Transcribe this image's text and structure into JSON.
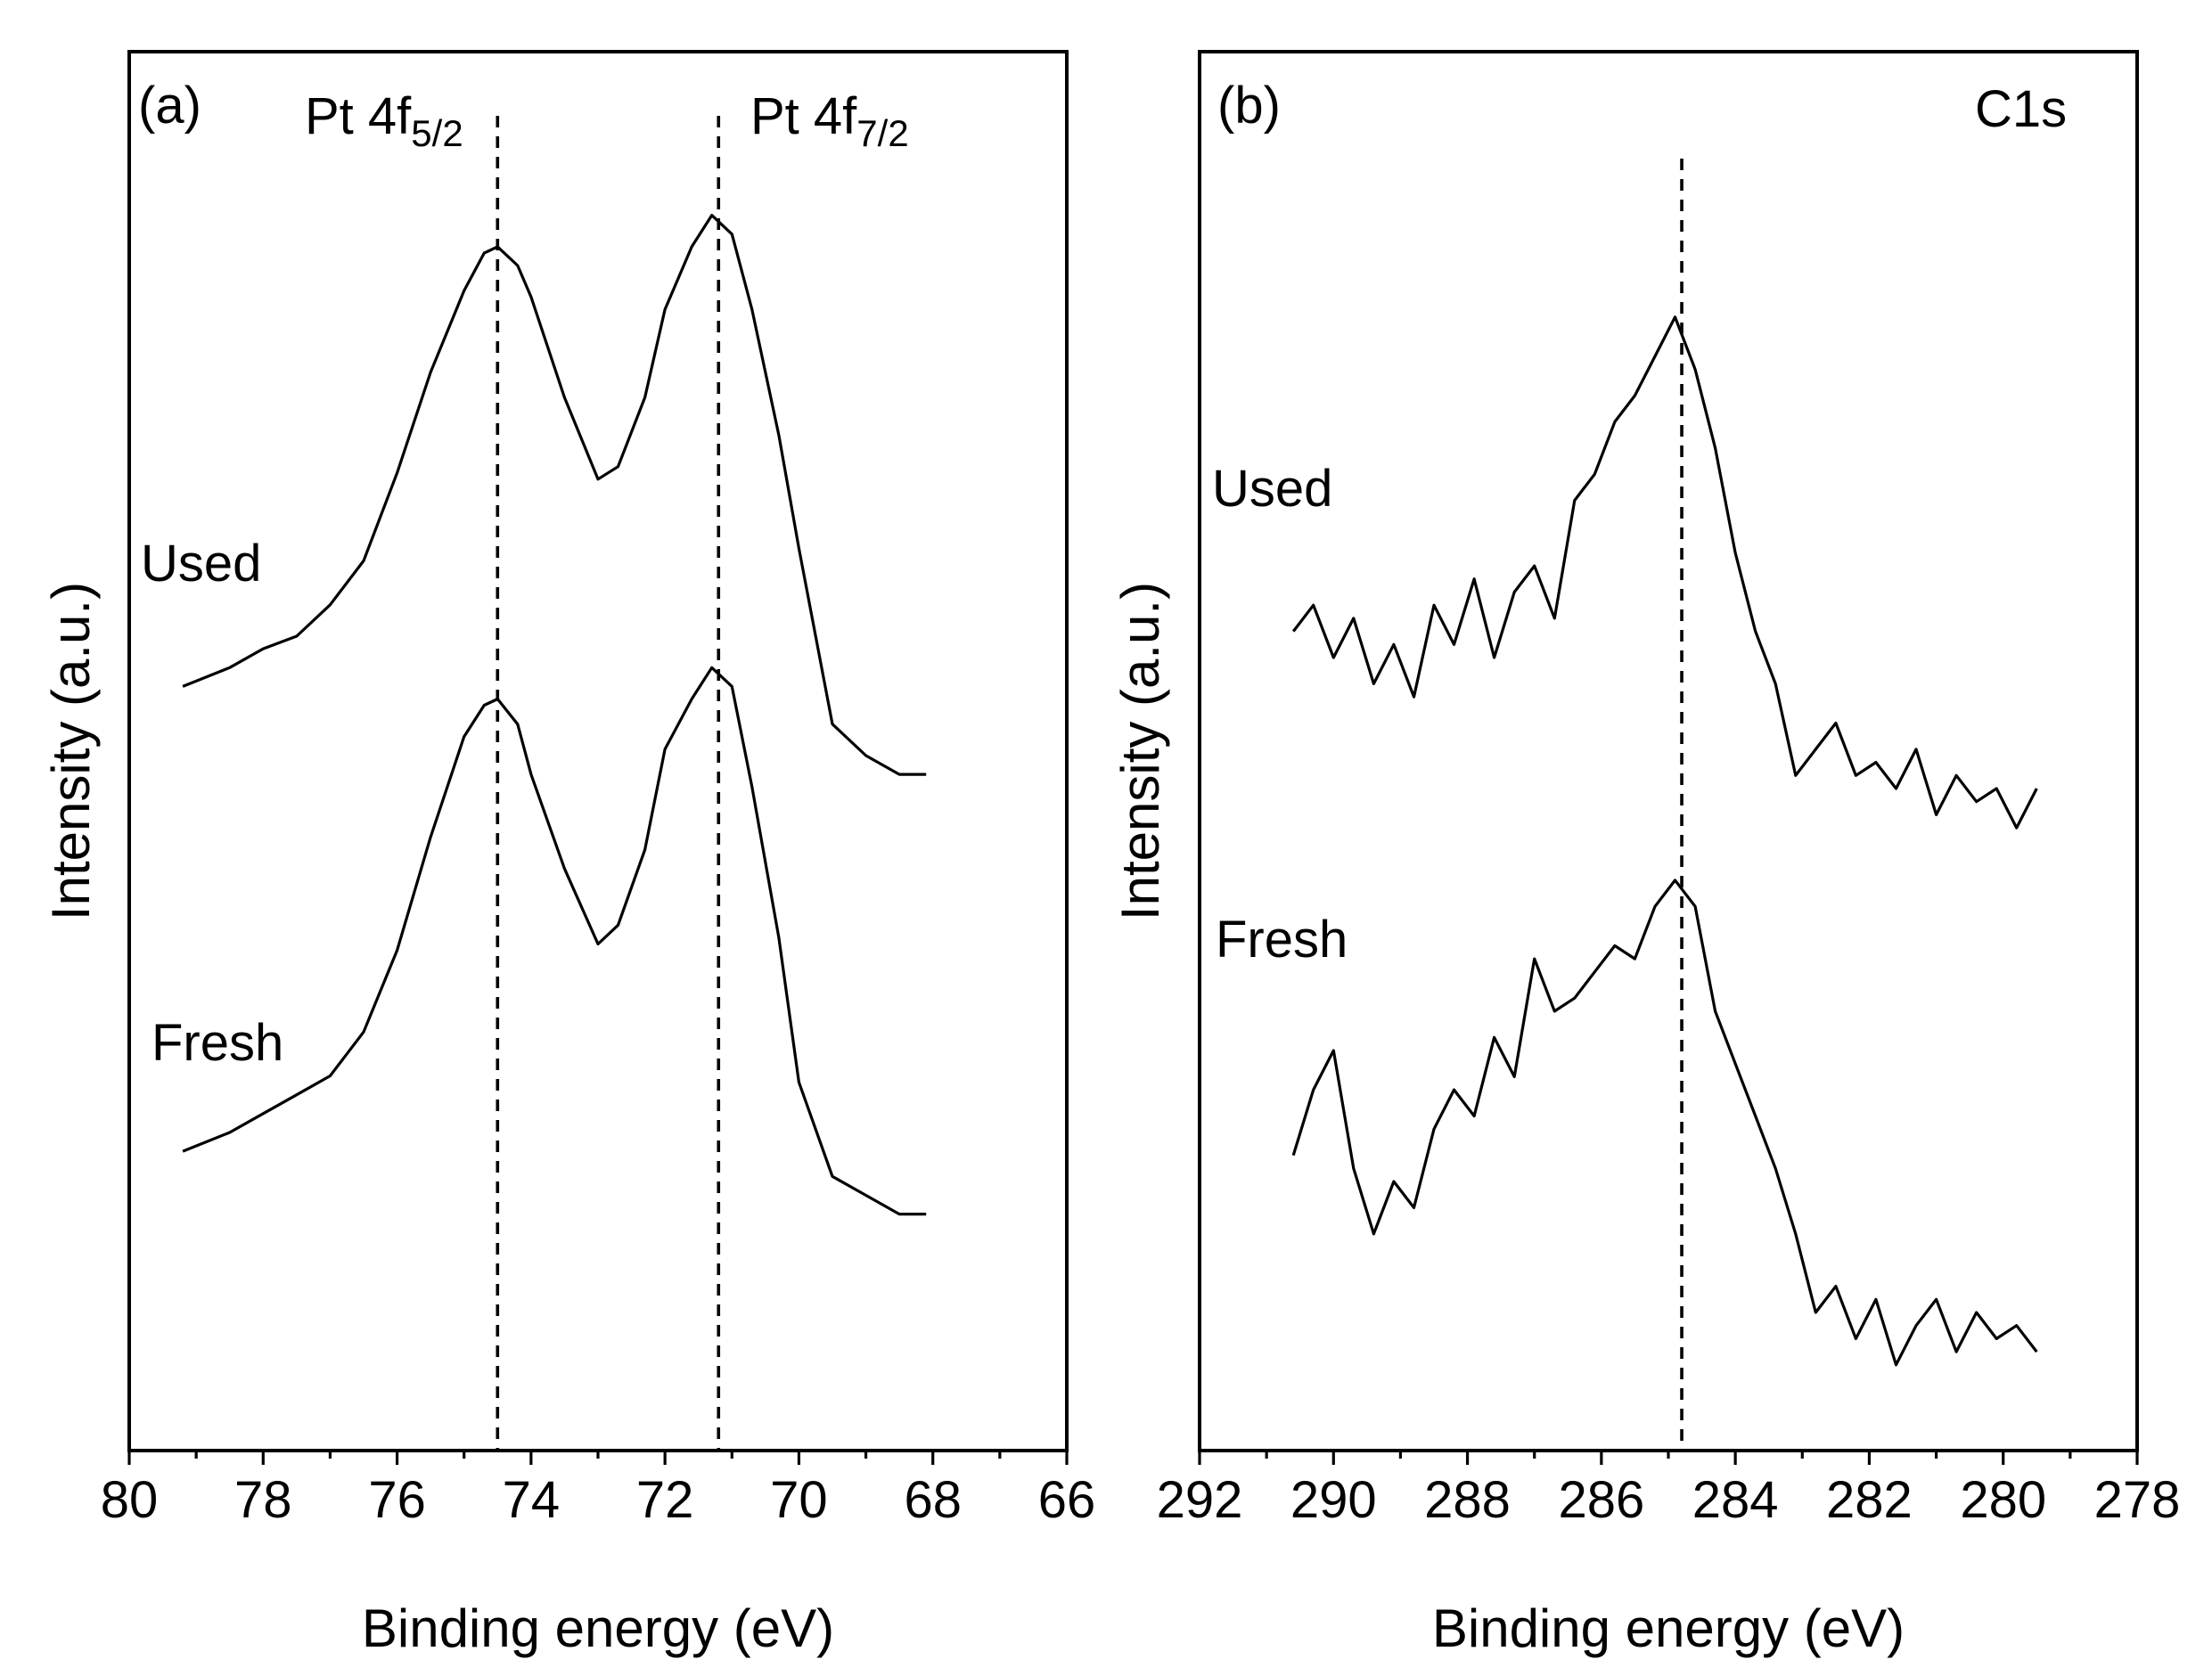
{
  "chart_data": [
    {
      "type": "line",
      "panel_label": "(a)",
      "xlabel": "Binding energy (eV)",
      "ylabel": "Intensity (a.u.)",
      "xlim": [
        80,
        66
      ],
      "x_direction": "reversed",
      "ylim": [
        0,
        1
      ],
      "y_ticks_shown": false,
      "x_ticks": [
        "80",
        "78",
        "76",
        "74",
        "72",
        "70",
        "68",
        "66"
      ],
      "reference_lines": [
        {
          "x": 74.5,
          "label_main": "Pt 4f",
          "label_sub": "5/2"
        },
        {
          "x": 71.2,
          "label_main": "Pt 4f",
          "label_sub": "7/2"
        }
      ],
      "series": [
        {
          "name": "Used",
          "x": [
            79.2,
            78.5,
            78.0,
            77.5,
            77.0,
            76.5,
            76.0,
            75.5,
            75.0,
            74.7,
            74.5,
            74.2,
            74.0,
            73.5,
            73.0,
            72.7,
            72.3,
            72.0,
            71.6,
            71.3,
            71.0,
            70.7,
            70.3,
            70.0,
            69.5,
            69.0,
            68.5,
            68.1
          ],
          "values": [
            0.56,
            0.575,
            0.59,
            0.6,
            0.625,
            0.66,
            0.73,
            0.81,
            0.875,
            0.905,
            0.91,
            0.895,
            0.87,
            0.79,
            0.725,
            0.735,
            0.79,
            0.86,
            0.91,
            0.935,
            0.92,
            0.86,
            0.76,
            0.67,
            0.53,
            0.505,
            0.49,
            0.49
          ]
        },
        {
          "name": "Fresh",
          "x": [
            79.2,
            78.5,
            78.0,
            77.5,
            77.0,
            76.5,
            76.0,
            75.5,
            75.0,
            74.7,
            74.5,
            74.2,
            74.0,
            73.5,
            73.0,
            72.7,
            72.3,
            72.0,
            71.6,
            71.3,
            71.0,
            70.7,
            70.3,
            70.0,
            69.5,
            69.0,
            68.5,
            68.1
          ],
          "values": [
            0.19,
            0.205,
            0.22,
            0.235,
            0.25,
            0.285,
            0.35,
            0.44,
            0.52,
            0.545,
            0.55,
            0.53,
            0.49,
            0.415,
            0.355,
            0.37,
            0.43,
            0.51,
            0.55,
            0.575,
            0.56,
            0.48,
            0.36,
            0.245,
            0.17,
            0.155,
            0.14,
            0.14
          ]
        }
      ],
      "curve_labels": [
        "Used",
        "Fresh"
      ]
    },
    {
      "type": "line",
      "panel_label": "(b)",
      "title_annotation": "C1s",
      "xlabel": "Binding energy (eV)",
      "ylabel": "Intensity (a.u.)",
      "xlim": [
        292,
        278
      ],
      "x_direction": "reversed",
      "ylim": [
        0,
        1
      ],
      "y_ticks_shown": false,
      "x_ticks": [
        "292",
        "290",
        "288",
        "286",
        "284",
        "282",
        "280",
        "278"
      ],
      "reference_lines": [
        {
          "x": 284.8
        }
      ],
      "series": [
        {
          "name": "Used",
          "x": [
            290.6,
            290.3,
            290.0,
            289.7,
            289.4,
            289.1,
            288.8,
            288.5,
            288.2,
            287.9,
            287.6,
            287.3,
            287.0,
            286.7,
            286.4,
            286.1,
            285.8,
            285.5,
            285.2,
            284.9,
            284.6,
            284.3,
            284.0,
            283.7,
            283.4,
            283.1,
            282.8,
            282.5,
            282.2,
            281.9,
            281.6,
            281.3,
            281.0,
            280.7,
            280.4,
            280.1,
            279.8,
            279.5
          ],
          "values": [
            0.62,
            0.64,
            0.6,
            0.63,
            0.58,
            0.61,
            0.57,
            0.64,
            0.61,
            0.66,
            0.6,
            0.65,
            0.67,
            0.63,
            0.72,
            0.74,
            0.78,
            0.8,
            0.83,
            0.86,
            0.82,
            0.76,
            0.68,
            0.62,
            0.58,
            0.51,
            0.53,
            0.55,
            0.51,
            0.52,
            0.5,
            0.53,
            0.48,
            0.51,
            0.49,
            0.5,
            0.47,
            0.5
          ]
        },
        {
          "name": "Fresh",
          "x": [
            290.6,
            290.3,
            290.0,
            289.7,
            289.4,
            289.1,
            288.8,
            288.5,
            288.2,
            287.9,
            287.6,
            287.3,
            287.0,
            286.7,
            286.4,
            286.1,
            285.8,
            285.5,
            285.2,
            284.9,
            284.6,
            284.3,
            284.0,
            283.7,
            283.4,
            283.1,
            282.8,
            282.5,
            282.2,
            281.9,
            281.6,
            281.3,
            281.0,
            280.7,
            280.4,
            280.1,
            279.8,
            279.5
          ],
          "values": [
            0.22,
            0.27,
            0.3,
            0.21,
            0.16,
            0.2,
            0.18,
            0.24,
            0.27,
            0.25,
            0.31,
            0.28,
            0.37,
            0.33,
            0.34,
            0.36,
            0.38,
            0.37,
            0.41,
            0.43,
            0.41,
            0.33,
            0.29,
            0.25,
            0.21,
            0.16,
            0.1,
            0.12,
            0.08,
            0.11,
            0.06,
            0.09,
            0.11,
            0.07,
            0.1,
            0.08,
            0.09,
            0.07
          ]
        }
      ],
      "curve_labels": [
        "Used",
        "Fresh"
      ]
    }
  ]
}
